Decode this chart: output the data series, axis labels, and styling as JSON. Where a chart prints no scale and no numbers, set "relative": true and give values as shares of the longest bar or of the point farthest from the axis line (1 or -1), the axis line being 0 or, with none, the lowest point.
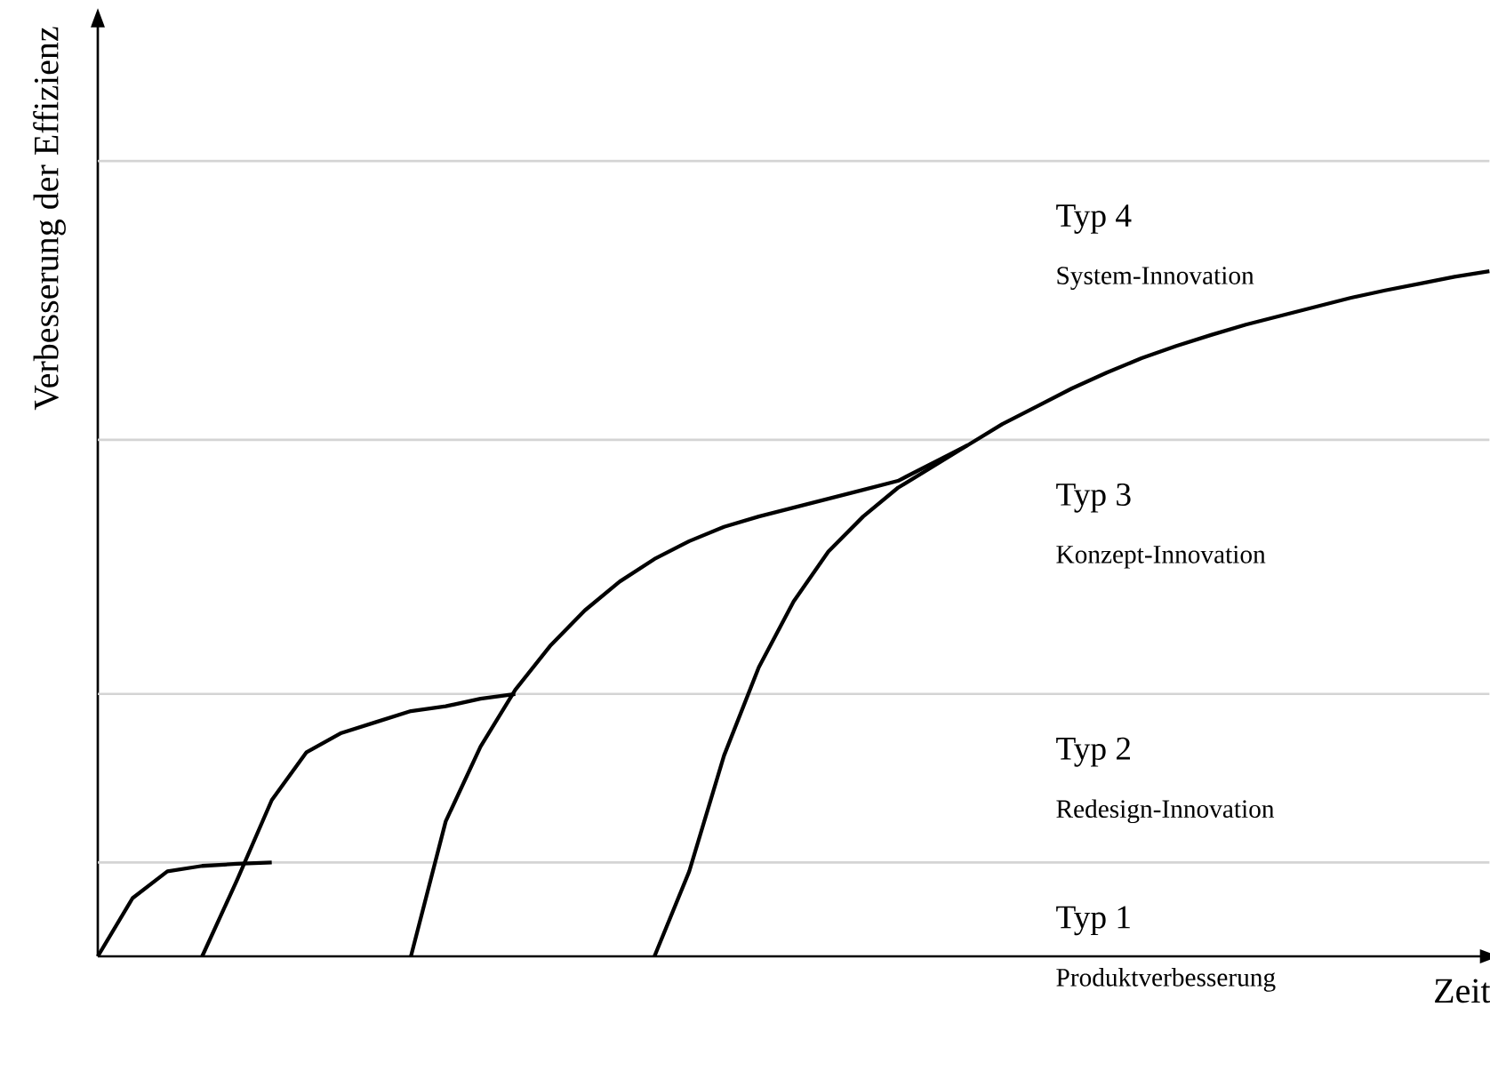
{
  "chart_data": {
    "type": "line",
    "relative": true,
    "xlabel": "Zeit",
    "ylabel": "Verbesserung der Effizienz",
    "categories": [
      null,
      null,
      null,
      null,
      null,
      null,
      null,
      null,
      null,
      null,
      null,
      null,
      null,
      null,
      null,
      null,
      null,
      null,
      null,
      null,
      null,
      null,
      null,
      null,
      null,
      null,
      null,
      null,
      null,
      null,
      null,
      null,
      null,
      null,
      null,
      null,
      null,
      null,
      null,
      null,
      null
    ],
    "series": [
      {
        "color": "#000000",
        "values": [
          0,
          0.085,
          0.124,
          0.132,
          0.135,
          0.137,
          null,
          null,
          null,
          null,
          null,
          null,
          null,
          null,
          null,
          null,
          null,
          null,
          null,
          null,
          null,
          null,
          null,
          null,
          null,
          null,
          null,
          null,
          null,
          null,
          null,
          null,
          null,
          null,
          null,
          null,
          null,
          null,
          null,
          null,
          null
        ]
      },
      {
        "color": "#000000",
        "values": [
          null,
          null,
          null,
          0,
          0.111,
          0.228,
          0.298,
          0.326,
          0.342,
          0.358,
          0.365,
          0.376,
          0.383,
          null,
          null,
          null,
          null,
          null,
          null,
          null,
          null,
          null,
          null,
          null,
          null,
          null,
          null,
          null,
          null,
          null,
          null,
          null,
          null,
          null,
          null,
          null,
          null,
          null,
          null,
          null,
          null
        ]
      },
      {
        "color": "#000000",
        "values": [
          null,
          null,
          null,
          null,
          null,
          null,
          null,
          null,
          null,
          0,
          0.197,
          0.306,
          0.389,
          0.453,
          0.505,
          0.547,
          0.58,
          0.606,
          0.627,
          0.642,
          0.655,
          0.668,
          0.681,
          0.694,
          0.72,
          0.746,
          null,
          null,
          null,
          null,
          null,
          null,
          null,
          null,
          null,
          null,
          null,
          null,
          null,
          null,
          null
        ]
      },
      {
        "color": "#000000",
        "values": [
          null,
          null,
          null,
          null,
          null,
          null,
          null,
          null,
          null,
          null,
          null,
          null,
          null,
          null,
          null,
          null,
          0,
          0.124,
          0.293,
          0.422,
          0.518,
          0.591,
          0.642,
          0.684,
          0.715,
          0.746,
          0.777,
          0.803,
          0.829,
          0.852,
          0.873,
          0.891,
          0.907,
          0.922,
          0.935,
          0.948,
          0.961,
          0.972,
          0.982,
          0.992,
          1
        ]
      }
    ],
    "ref_lines": [
      {
        "axis": "y",
        "value": 0.137,
        "color": "#d4d4d4"
      },
      {
        "axis": "y",
        "value": 0.383,
        "color": "#d4d4d4"
      },
      {
        "axis": "y",
        "value": 0.754,
        "color": "#d4d4d4"
      },
      {
        "axis": "y",
        "value": 1.161,
        "color": "#d4d4d4"
      }
    ],
    "annotations": [
      "Typ 1",
      "Produktverbesserung",
      "Typ 2",
      "Redesign-Innovation",
      "Typ 3",
      "Konzept-Innovation",
      "Typ 4",
      "System-Innovation"
    ]
  }
}
